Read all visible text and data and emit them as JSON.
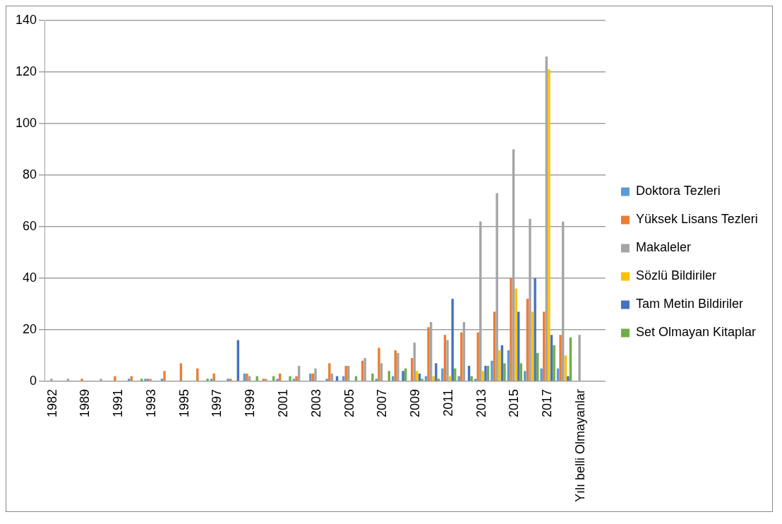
{
  "chart_data": {
    "type": "bar",
    "categories": [
      "1982",
      null,
      "1989",
      null,
      "1991",
      null,
      "1993",
      null,
      "1995",
      null,
      "1997",
      null,
      "1999",
      null,
      "2001",
      null,
      "2003",
      null,
      "2005",
      null,
      "2007",
      null,
      "2009",
      null,
      "2011",
      null,
      "2013",
      null,
      "2015",
      null,
      "2017",
      null,
      "Yılı belli Olmayanlar",
      null
    ],
    "series": [
      {
        "name": "Doktora Tezleri",
        "color": "#5b9bd5",
        "values": [
          0,
          0,
          0,
          0,
          0,
          1,
          1,
          1,
          0,
          0,
          1,
          1,
          3,
          0,
          1,
          1,
          3,
          1,
          2,
          0,
          1,
          2,
          0,
          2,
          5,
          2,
          1,
          8,
          12,
          4,
          5,
          5,
          0,
          0
        ]
      },
      {
        "name": "Yüksek Lisans Tezleri",
        "color": "#ed7d31",
        "values": [
          0,
          0,
          1,
          0,
          2,
          2,
          1,
          4,
          7,
          5,
          3,
          1,
          3,
          1,
          3,
          2,
          3,
          7,
          6,
          8,
          13,
          12,
          9,
          21,
          18,
          19,
          19,
          27,
          40,
          32,
          27,
          18,
          0,
          0
        ]
      },
      {
        "name": "Makaleler",
        "color": "#a5a5a5",
        "values": [
          1,
          1,
          0,
          1,
          0,
          0,
          1,
          0,
          0,
          0,
          0,
          0,
          2,
          1,
          0,
          6,
          5,
          3,
          6,
          9,
          7,
          11,
          15,
          23,
          16,
          23,
          62,
          73,
          90,
          63,
          126,
          62,
          18,
          0
        ]
      },
      {
        "name": "Sözlü Bildiriler",
        "color": "#ffc000",
        "values": [
          0,
          0,
          0,
          0,
          0,
          0,
          0,
          0,
          0,
          0,
          0,
          0,
          0,
          0,
          0,
          0,
          0,
          0,
          0,
          0,
          0,
          0,
          4,
          2,
          2,
          0,
          4,
          12,
          36,
          27,
          121,
          10,
          0,
          0
        ]
      },
      {
        "name": "Tam Metin Bildiriler",
        "color": "#4472c4",
        "values": [
          0,
          0,
          0,
          0,
          0,
          0,
          0,
          0,
          0,
          0,
          0,
          16,
          0,
          0,
          0,
          0,
          0,
          2,
          0,
          0,
          0,
          4,
          3,
          7,
          32,
          6,
          6,
          14,
          27,
          40,
          18,
          2,
          0,
          0
        ]
      },
      {
        "name": "Set Olmayan Kitaplar",
        "color": "#70ad47",
        "values": [
          0,
          0,
          0,
          0,
          0,
          1,
          0,
          0,
          0,
          1,
          0,
          0,
          2,
          2,
          2,
          0,
          0,
          0,
          2,
          3,
          4,
          5,
          1,
          1,
          5,
          2,
          6,
          7,
          7,
          11,
          14,
          17,
          0,
          0
        ]
      }
    ],
    "ylim": [
      0,
      140
    ],
    "yticks": [
      0,
      20,
      40,
      60,
      80,
      100,
      120,
      140
    ],
    "grid": "y",
    "legend": "right"
  }
}
